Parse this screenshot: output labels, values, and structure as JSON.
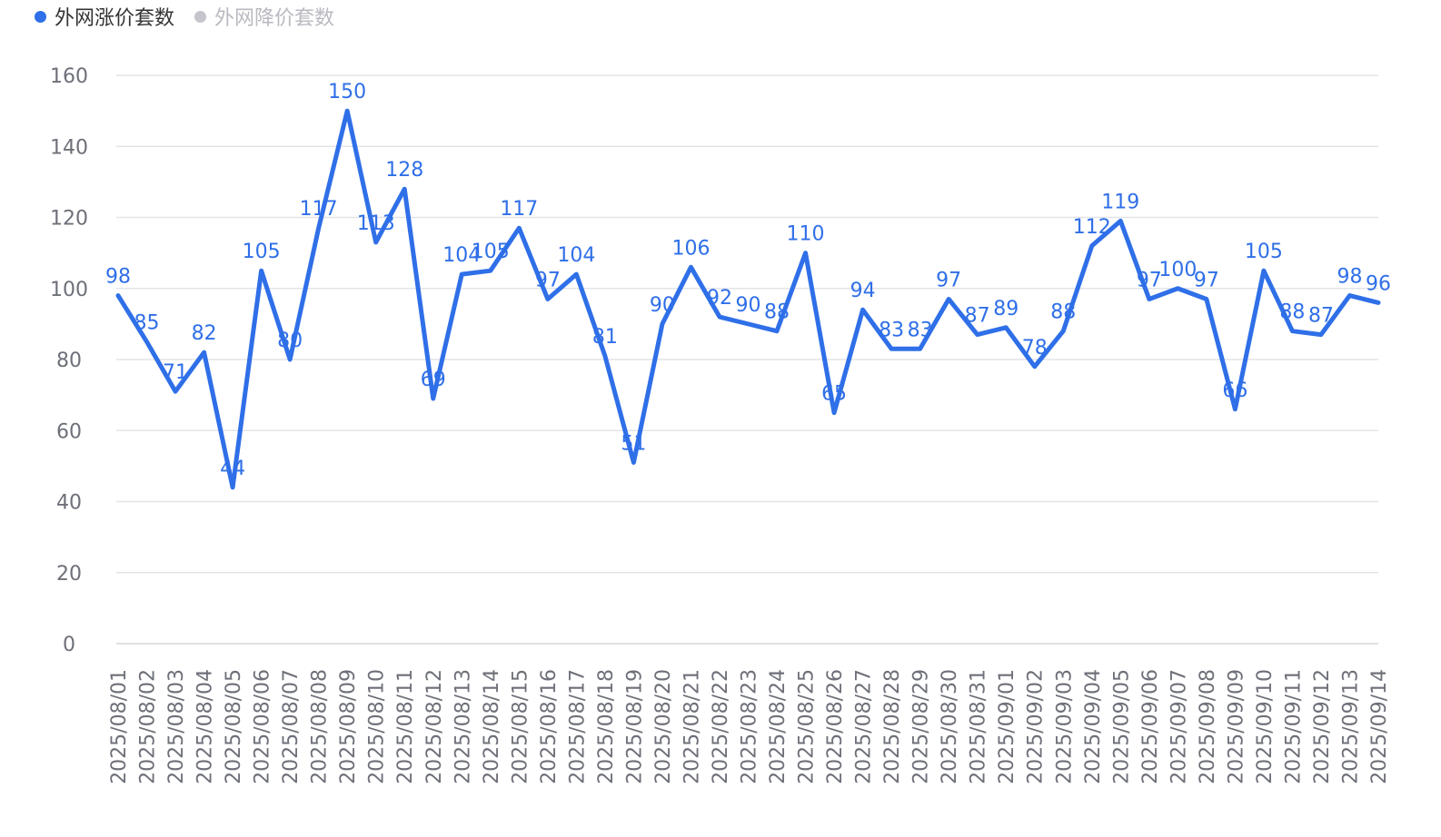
{
  "legend": {
    "rise": {
      "label": "外网涨价套数",
      "color": "#2f6fe8"
    },
    "fall": {
      "label": "外网降价套数",
      "color": "#c5c5cc"
    }
  },
  "chart_data": {
    "type": "line",
    "title": "",
    "xlabel": "",
    "ylabel": "",
    "ylim": [
      0,
      160
    ],
    "yticks": [
      0,
      20,
      40,
      60,
      80,
      100,
      120,
      140,
      160
    ],
    "categories": [
      "2025/08/01",
      "2025/08/02",
      "2025/08/03",
      "2025/08/04",
      "2025/08/05",
      "2025/08/06",
      "2025/08/07",
      "2025/08/08",
      "2025/08/09",
      "2025/08/10",
      "2025/08/11",
      "2025/08/12",
      "2025/08/13",
      "2025/08/14",
      "2025/08/15",
      "2025/08/16",
      "2025/08/17",
      "2025/08/18",
      "2025/08/19",
      "2025/08/20",
      "2025/08/21",
      "2025/08/22",
      "2025/08/23",
      "2025/08/24",
      "2025/08/25",
      "2025/08/26",
      "2025/08/27",
      "2025/08/28",
      "2025/08/29",
      "2025/08/30",
      "2025/08/31",
      "2025/09/01",
      "2025/09/02",
      "2025/09/03",
      "2025/09/04",
      "2025/09/05",
      "2025/09/06",
      "2025/09/07",
      "2025/09/08",
      "2025/09/09",
      "2025/09/10",
      "2025/09/11",
      "2025/09/12",
      "2025/09/13",
      "2025/09/14"
    ],
    "series": [
      {
        "name": "外网涨价套数",
        "color": "#2f6fe8",
        "values": [
          98,
          85,
          71,
          82,
          44,
          105,
          80,
          117,
          150,
          113,
          128,
          69,
          104,
          105,
          117,
          97,
          104,
          81,
          51,
          90,
          106,
          92,
          90,
          88,
          110,
          65,
          94,
          83,
          83,
          97,
          87,
          89,
          78,
          88,
          112,
          119,
          97,
          100,
          97,
          66,
          105,
          88,
          87,
          98,
          96
        ]
      }
    ],
    "grid": true,
    "legend_position": "top-left"
  }
}
